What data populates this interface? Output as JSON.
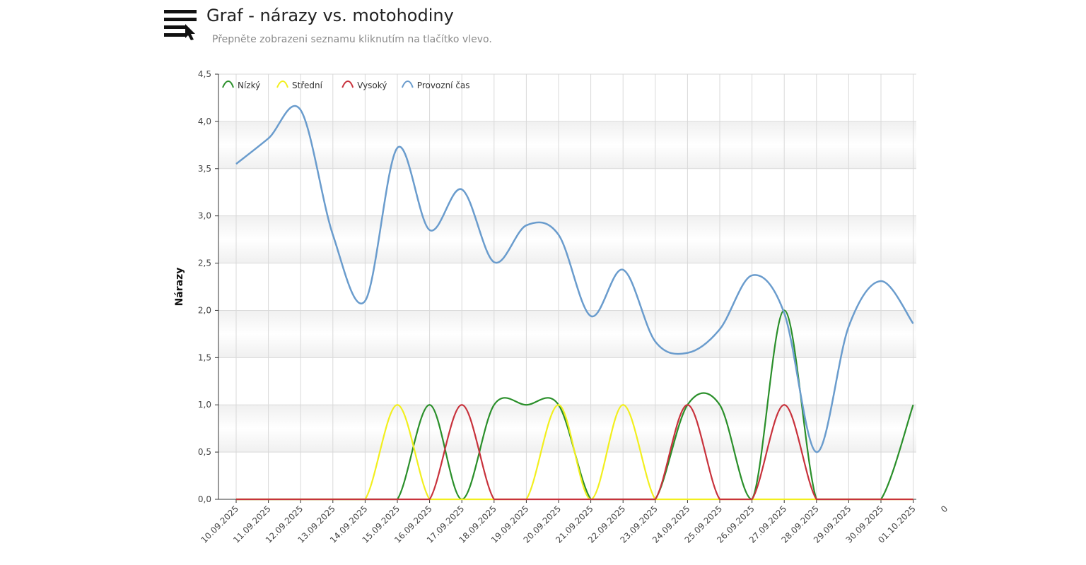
{
  "header": {
    "title": "Graf - nárazy vs. motohodiny",
    "subtitle": "Přepněte zobrazeni seznamu kliknutím na tlačítko vlevo."
  },
  "colors": {
    "nizky": "#2a8f2a",
    "stredni": "#f2ef1e",
    "vysoky": "#c8323c",
    "provozni": "#6a9ccd",
    "grid": "#d9d9d9",
    "axis": "#333333"
  },
  "chart_data": {
    "type": "line",
    "ylabel": "Nárazy",
    "xlabel": "",
    "ylim": [
      0,
      4.5
    ],
    "yticks": [
      "0,0",
      "0,5",
      "1,0",
      "1,5",
      "2,0",
      "2,5",
      "3,0",
      "3,5",
      "4,0",
      "4,5"
    ],
    "categories": [
      "10.09.2025",
      "11.09.2025",
      "12.09.2025",
      "13.09.2025",
      "14.09.2025",
      "15.09.2025",
      "16.09.2025",
      "17.09.2025",
      "18.09.2025",
      "19.09.2025",
      "20.09.2025",
      "21.09.2025",
      "22.09.2025",
      "23.09.2025",
      "24.09.2025",
      "25.09.2025",
      "26.09.2025",
      "27.09.2025",
      "28.09.2025",
      "29.09.2025",
      "30.09.2025",
      "01.10.2025"
    ],
    "cut_label": "0",
    "legend_position": "top-left",
    "series": [
      {
        "name": "Nízký",
        "color_key": "nizky",
        "values": [
          0,
          0,
          0,
          0,
          0,
          0,
          1,
          0,
          1,
          1,
          1,
          0,
          0,
          0,
          1,
          1,
          0,
          2,
          0,
          0,
          0,
          1
        ]
      },
      {
        "name": "Střední",
        "color_key": "stredni",
        "values": [
          0,
          0,
          0,
          0,
          0,
          1,
          0,
          0,
          0,
          0,
          1,
          0,
          1,
          0,
          0,
          0,
          0,
          0,
          0,
          0,
          0,
          0
        ]
      },
      {
        "name": "Vysoký",
        "color_key": "vysoky",
        "values": [
          0,
          0,
          0,
          0,
          0,
          0,
          0,
          1,
          0,
          0,
          0,
          0,
          0,
          0,
          1,
          0,
          0,
          1,
          0,
          0,
          0,
          0
        ]
      },
      {
        "name": "Provozní čas",
        "color_key": "provozni",
        "values": [
          3.55,
          3.82,
          4.12,
          2.8,
          2.1,
          3.72,
          2.85,
          3.28,
          2.51,
          2.9,
          2.8,
          1.94,
          2.43,
          1.67,
          1.55,
          1.8,
          2.37,
          1.97,
          0.5,
          1.83,
          2.31,
          1.86
        ]
      }
    ]
  }
}
